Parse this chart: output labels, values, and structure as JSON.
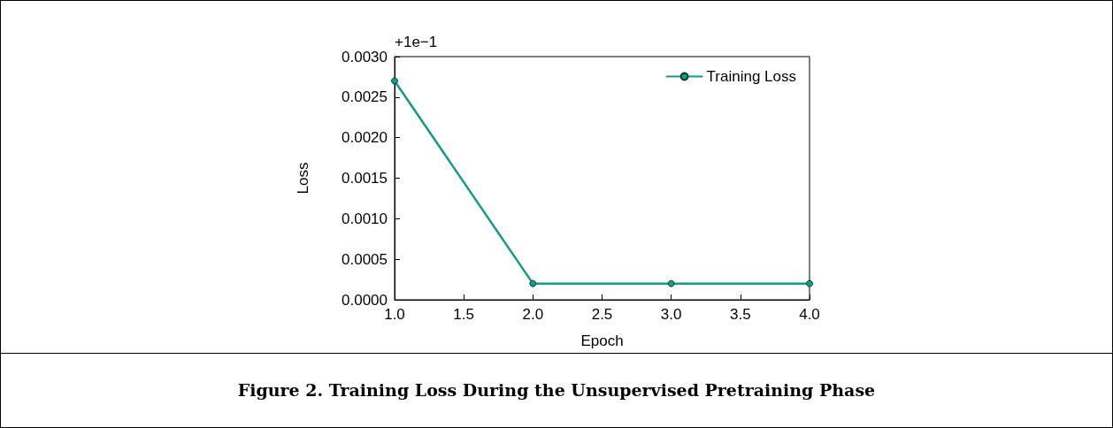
{
  "chart_data": {
    "type": "line",
    "title": "Figure 2. Training Loss During the Unsupervised Pretraining Phase",
    "xlabel": "Epoch",
    "ylabel": "Loss",
    "annotations": [
      "+1e−1"
    ],
    "x": [
      1,
      2,
      3,
      4
    ],
    "series": [
      {
        "name": "Training Loss",
        "color": "#119c8a",
        "values": [
          0.0027,
          0.0002,
          0.0002,
          0.0002
        ]
      }
    ],
    "xlim": [
      1,
      4
    ],
    "xticks": [
      {
        "value": 1,
        "label": "1.0"
      },
      1.5,
      {
        "value": 2,
        "label": "2.0"
      },
      2.5,
      {
        "value": 3,
        "label": "3.0"
      },
      3.5,
      {
        "value": 4,
        "label": "4.0"
      }
    ],
    "ylim": [
      0,
      0.003
    ],
    "yticks": [
      {
        "value": 0,
        "label": "0.0000"
      },
      {
        "value": 0.0005,
        "label": "0.0005"
      },
      {
        "value": 0.001,
        "label": "0.0010"
      },
      {
        "value": 0.0015,
        "label": "0.0015"
      },
      {
        "value": 0.002,
        "label": "0.0020"
      },
      {
        "value": 0.0025,
        "label": "0.0025"
      },
      {
        "value": 0.003,
        "label": "0.0030"
      }
    ],
    "grid": false,
    "legend": "top right",
    "marker": "circle",
    "line_style": "solid"
  }
}
